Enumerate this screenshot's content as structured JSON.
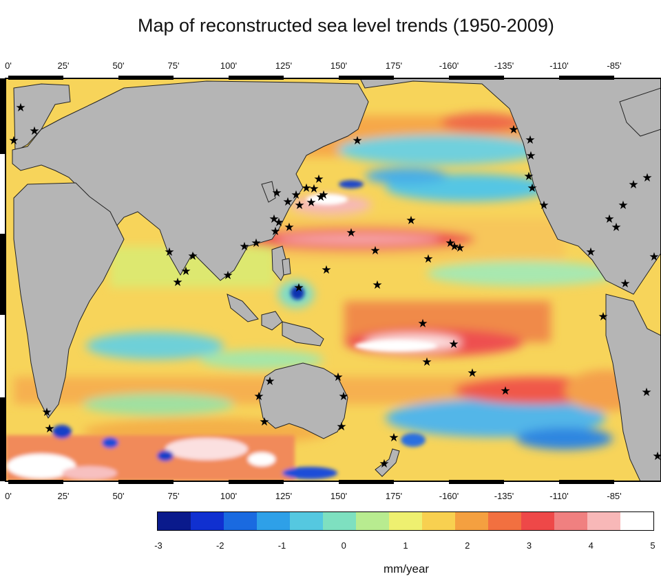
{
  "title": "Map of reconstructed sea level trends (1950-2009)",
  "longitude_labels": [
    "0'",
    "25'",
    "50'",
    "75'",
    "100'",
    "125'",
    "150'",
    "175'",
    "-160'",
    "-135'",
    "-110'",
    "-85'"
  ],
  "colorbar": {
    "ticks": [
      "-3",
      "-2",
      "-1",
      "0",
      "1",
      "2",
      "3",
      "4",
      "5"
    ],
    "units": "mm/year",
    "range": [
      -3,
      5
    ],
    "colors": [
      "#0a1a8c",
      "#1030d0",
      "#1a6ae0",
      "#2ea0e8",
      "#55c8e0",
      "#7ee0c0",
      "#b8ec90",
      "#eef070",
      "#f8d050",
      "#f4a040",
      "#f27040",
      "#ee4848",
      "#f08080",
      "#f8b8b8",
      "#ffffff"
    ]
  },
  "colors": {
    "land": "#b5b5b5",
    "coast": "#222222",
    "marker": "#000000"
  },
  "markers": {
    "icon": "star",
    "count": 68
  }
}
